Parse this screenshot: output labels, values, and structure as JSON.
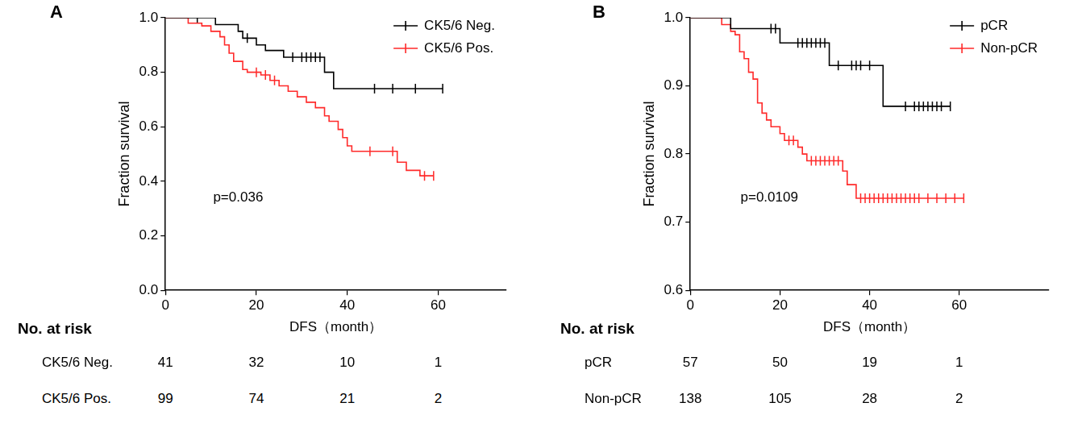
{
  "chart_data": [
    {
      "type": "line",
      "title": "A",
      "x_label": "DFS（month）",
      "y_label": "Fraction survival",
      "xlim": [
        0,
        75
      ],
      "xticks": [
        0,
        20,
        40,
        60
      ],
      "ylim": [
        0,
        1
      ],
      "yticks": [
        {
          "value": 0,
          "label": "0.0"
        },
        0.2,
        0.4,
        0.6,
        0.8,
        {
          "value": 1,
          "label": "1.0"
        }
      ],
      "grid": false,
      "legend": "upper right",
      "annotation": "p=0.036",
      "series": [
        {
          "name": "CK5/6 Neg.",
          "color": "#000000",
          "line_style": "step",
          "marker": "vline",
          "x": [
            0,
            11,
            16,
            17,
            20,
            22,
            26,
            35,
            37,
            61
          ],
          "values": [
            1,
            0.975,
            0.95,
            0.925,
            0.9,
            0.88,
            0.855,
            0.8,
            0.74,
            0.74
          ],
          "censored": [
            7,
            18,
            28,
            30,
            31,
            32,
            33,
            34,
            46,
            50,
            55,
            61
          ]
        },
        {
          "name": "CK5/6 Pos.",
          "color": "#ff2a2a",
          "line_style": "step",
          "marker": "vline",
          "x": [
            0,
            5,
            8,
            10,
            12,
            13,
            14,
            15,
            17,
            18,
            21,
            23,
            25,
            27,
            29,
            31,
            33,
            35,
            36,
            38,
            39,
            40,
            41,
            51,
            53,
            56,
            59
          ],
          "values": [
            1,
            0.98,
            0.97,
            0.95,
            0.93,
            0.9,
            0.87,
            0.84,
            0.81,
            0.8,
            0.79,
            0.77,
            0.75,
            0.73,
            0.71,
            0.69,
            0.67,
            0.64,
            0.62,
            0.59,
            0.56,
            0.53,
            0.51,
            0.47,
            0.44,
            0.42,
            0.42
          ],
          "censored": [
            20,
            22,
            24,
            45,
            50,
            57,
            59
          ]
        }
      ],
      "risk_table": {
        "title": "No. at risk",
        "times": [
          0,
          20,
          40,
          60
        ],
        "rows": [
          {
            "name": "CK5/6 Neg.",
            "counts": [
              41,
              32,
              10,
              1
            ]
          },
          {
            "name": "CK5/6 Pos.",
            "counts": [
              99,
              74,
              21,
              2
            ]
          }
        ]
      }
    },
    {
      "type": "line",
      "title": "B",
      "x_label": "DFS（month）",
      "y_label": "Fraction survival",
      "xlim": [
        0,
        80
      ],
      "xticks": [
        0,
        20,
        40,
        60
      ],
      "ylim": [
        0.6,
        1
      ],
      "yticks": [
        0.6,
        0.7,
        0.8,
        0.9,
        {
          "value": 1,
          "label": "1.0"
        }
      ],
      "grid": false,
      "legend": "upper right",
      "annotation": "p=0.0109",
      "series": [
        {
          "name": "pCR",
          "color": "#000000",
          "line_style": "step",
          "marker": "vline",
          "x": [
            0,
            9,
            20,
            31,
            43,
            58
          ],
          "values": [
            1,
            0.984,
            0.963,
            0.93,
            0.87,
            0.87
          ],
          "censored": [
            18,
            19,
            24,
            25,
            26,
            27,
            28,
            29,
            30,
            33,
            36,
            37,
            38,
            40,
            48,
            50,
            51,
            52,
            53,
            54,
            55,
            56,
            58
          ]
        },
        {
          "name": "Non-pCR",
          "color": "#ff2a2a",
          "line_style": "step",
          "marker": "vline",
          "x": [
            0,
            7,
            9,
            10,
            11,
            12,
            13,
            14,
            15,
            16,
            17,
            18,
            20,
            21,
            24,
            25,
            26,
            34,
            35,
            37,
            61
          ],
          "values": [
            1,
            0.99,
            0.98,
            0.975,
            0.95,
            0.94,
            0.92,
            0.91,
            0.875,
            0.86,
            0.85,
            0.84,
            0.83,
            0.82,
            0.81,
            0.8,
            0.79,
            0.775,
            0.755,
            0.735,
            0.735
          ],
          "censored": [
            22,
            23,
            27,
            28,
            29,
            30,
            31,
            32,
            33,
            38,
            39,
            40,
            41,
            42,
            43,
            44,
            45,
            46,
            47,
            48,
            49,
            50,
            51,
            53,
            55,
            57,
            59,
            61
          ]
        }
      ],
      "risk_table": {
        "title": "No. at risk",
        "times": [
          0,
          20,
          40,
          60
        ],
        "rows": [
          {
            "name": "pCR",
            "counts": [
              57,
              50,
              19,
              1
            ]
          },
          {
            "name": "Non-pCR",
            "counts": [
              138,
              105,
              28,
              2
            ]
          }
        ]
      }
    }
  ]
}
